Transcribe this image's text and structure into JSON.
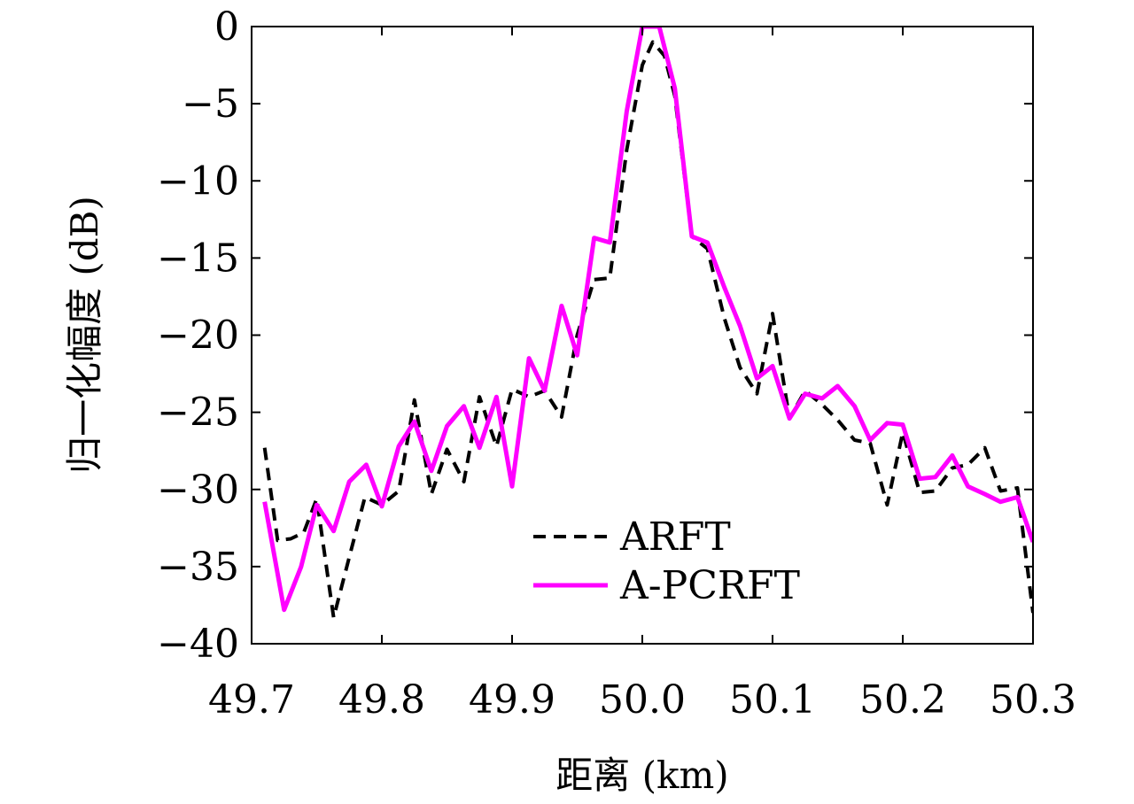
{
  "chart_data": {
    "type": "line",
    "xlabel": "距离 (km)",
    "ylabel": "归一化幅度 (dB)",
    "xlim": [
      49.7,
      50.3
    ],
    "ylim": [
      -40,
      0
    ],
    "xticks": [
      "49.7",
      "49.8",
      "49.9",
      "50.0",
      "50.1",
      "50.2",
      "50.3"
    ],
    "yticks": [
      "0",
      "−5",
      "−10",
      "−15",
      "−20",
      "−25",
      "−30",
      "−35",
      "−40"
    ],
    "xtick_values": [
      49.7,
      49.8,
      49.9,
      50.0,
      50.1,
      50.2,
      50.3
    ],
    "ytick_values": [
      0,
      -5,
      -10,
      -15,
      -20,
      -25,
      -30,
      -35,
      -40
    ],
    "grid": false,
    "legend_position": "bottom-center",
    "series": [
      {
        "name": "ARFT",
        "color": "#000000",
        "style": "dashed",
        "points": [
          [
            49.71,
            -27.3
          ],
          [
            49.72,
            -33.3
          ],
          [
            49.73,
            -33.2
          ],
          [
            49.74,
            -32.8
          ],
          [
            49.75,
            -30.6
          ],
          [
            49.763,
            -38.3
          ],
          [
            49.775,
            -34.4
          ],
          [
            49.787,
            -30.5
          ],
          [
            49.8,
            -31.0
          ],
          [
            49.813,
            -30.1
          ],
          [
            49.825,
            -24.2
          ],
          [
            49.838,
            -30.3
          ],
          [
            49.85,
            -27.4
          ],
          [
            49.863,
            -29.5
          ],
          [
            49.875,
            -24.0
          ],
          [
            49.888,
            -27.2
          ],
          [
            49.9,
            -23.5
          ],
          [
            49.913,
            -24.0
          ],
          [
            49.925,
            -23.6
          ],
          [
            49.938,
            -25.3
          ],
          [
            49.95,
            -20.0
          ],
          [
            49.963,
            -16.4
          ],
          [
            49.975,
            -16.3
          ],
          [
            49.988,
            -8.0
          ],
          [
            50.0,
            -2.5
          ],
          [
            50.008,
            -1.0
          ],
          [
            50.017,
            -1.9
          ],
          [
            50.025,
            -4.5
          ],
          [
            50.038,
            -13.6
          ],
          [
            50.05,
            -14.4
          ],
          [
            50.063,
            -18.9
          ],
          [
            50.075,
            -22.1
          ],
          [
            50.088,
            -23.8
          ],
          [
            50.1,
            -18.6
          ],
          [
            50.113,
            -25.4
          ],
          [
            50.125,
            -23.6
          ],
          [
            50.138,
            -24.5
          ],
          [
            50.15,
            -25.5
          ],
          [
            50.163,
            -26.8
          ],
          [
            50.175,
            -27.0
          ],
          [
            50.188,
            -31.0
          ],
          [
            50.2,
            -26.3
          ],
          [
            50.213,
            -30.2
          ],
          [
            50.225,
            -30.1
          ],
          [
            50.238,
            -28.6
          ],
          [
            50.25,
            -28.4
          ],
          [
            50.263,
            -27.3
          ],
          [
            50.275,
            -30.1
          ],
          [
            50.288,
            -29.9
          ],
          [
            50.3,
            -38.0
          ]
        ]
      },
      {
        "name": "A-PCRFT",
        "color": "#ff00ff",
        "style": "solid",
        "points": [
          [
            49.71,
            -30.8
          ],
          [
            49.725,
            -37.8
          ],
          [
            49.738,
            -35.0
          ],
          [
            49.75,
            -31.0
          ],
          [
            49.763,
            -32.7
          ],
          [
            49.775,
            -29.5
          ],
          [
            49.788,
            -28.4
          ],
          [
            49.8,
            -31.1
          ],
          [
            49.813,
            -27.2
          ],
          [
            49.825,
            -25.6
          ],
          [
            49.838,
            -28.8
          ],
          [
            49.85,
            -25.9
          ],
          [
            49.863,
            -24.6
          ],
          [
            49.875,
            -27.3
          ],
          [
            49.888,
            -24.0
          ],
          [
            49.9,
            -29.8
          ],
          [
            49.913,
            -21.5
          ],
          [
            49.925,
            -23.6
          ],
          [
            49.938,
            -18.1
          ],
          [
            49.95,
            -21.3
          ],
          [
            49.963,
            -13.7
          ],
          [
            49.975,
            -14.0
          ],
          [
            49.988,
            -5.5
          ],
          [
            50.0,
            0.0
          ],
          [
            50.013,
            0.0
          ],
          [
            50.025,
            -4.0
          ],
          [
            50.038,
            -13.6
          ],
          [
            50.05,
            -14.0
          ],
          [
            50.063,
            -16.9
          ],
          [
            50.075,
            -19.4
          ],
          [
            50.088,
            -22.8
          ],
          [
            50.1,
            -22.0
          ],
          [
            50.113,
            -25.4
          ],
          [
            50.125,
            -23.8
          ],
          [
            50.138,
            -24.1
          ],
          [
            50.15,
            -23.3
          ],
          [
            50.163,
            -24.6
          ],
          [
            50.175,
            -26.8
          ],
          [
            50.188,
            -25.7
          ],
          [
            50.2,
            -25.8
          ],
          [
            50.213,
            -29.3
          ],
          [
            50.225,
            -29.2
          ],
          [
            50.238,
            -27.8
          ],
          [
            50.25,
            -29.8
          ],
          [
            50.263,
            -30.3
          ],
          [
            50.275,
            -30.8
          ],
          [
            50.288,
            -30.5
          ],
          [
            50.3,
            -33.4
          ]
        ]
      }
    ]
  }
}
